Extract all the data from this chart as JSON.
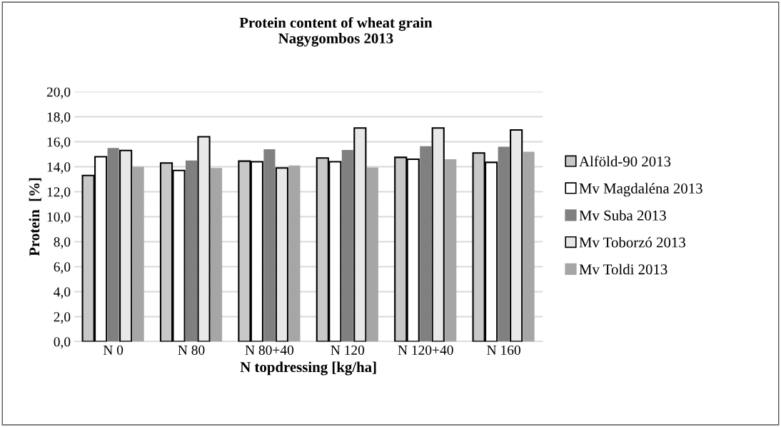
{
  "chart_data": {
    "type": "bar",
    "title": "Protein content of wheat grain\nNagygombos 2013",
    "xlabel": "N topdressing [kg/ha]",
    "ylabel": "Protein  [%]",
    "categories": [
      "N 0",
      "N 80",
      "N 80+40",
      "N 120",
      "N 120+40",
      "N 160"
    ],
    "series": [
      {
        "name": "Alföld-90 2013",
        "color": "#c8c8c8",
        "values": [
          13.3,
          14.3,
          14.45,
          14.7,
          14.75,
          15.1
        ]
      },
      {
        "name": "Mv Magdaléna 2013",
        "color": "#ffffff",
        "values": [
          14.8,
          13.7,
          14.4,
          14.4,
          14.6,
          14.35
        ]
      },
      {
        "name": "Mv Suba 2013",
        "color": "#808080",
        "values": [
          15.5,
          14.5,
          15.4,
          15.35,
          15.65,
          15.6
        ]
      },
      {
        "name": "Mv Toborzó 2013",
        "color": "#e8e8e8",
        "values": [
          15.3,
          16.4,
          13.9,
          17.1,
          17.1,
          16.95
        ]
      },
      {
        "name": "Mv Toldi 2013",
        "color": "#a6a6a6",
        "values": [
          14.0,
          13.9,
          14.1,
          13.95,
          14.6,
          15.2
        ]
      }
    ],
    "ylim": [
      0,
      20
    ],
    "yticks": [
      {
        "value": 0,
        "label": "0,0"
      },
      {
        "value": 2,
        "label": "2,0"
      },
      {
        "value": 4,
        "label": "4,0"
      },
      {
        "value": 6,
        "label": "6,0"
      },
      {
        "value": 8,
        "label": "8,0"
      },
      {
        "value": 10,
        "label": "10,0"
      },
      {
        "value": 12,
        "label": "12,0"
      },
      {
        "value": 14,
        "label": "14,0"
      },
      {
        "value": 16,
        "label": "16,0"
      },
      {
        "value": 18,
        "label": "18,0"
      },
      {
        "value": 20,
        "label": "20,0"
      }
    ],
    "grid": "y",
    "legend": "right"
  }
}
